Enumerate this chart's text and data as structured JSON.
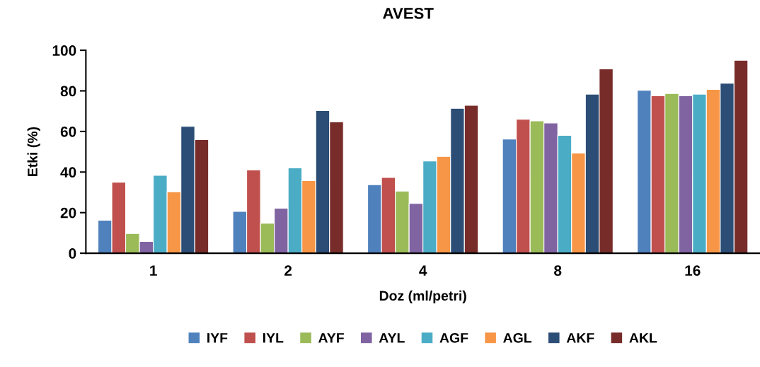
{
  "chart_data": {
    "type": "bar",
    "title": "AVEST",
    "xlabel": "Doz (ml/petri)",
    "ylabel": "Etki (%)",
    "categories": [
      "1",
      "2",
      "4",
      "8",
      "16"
    ],
    "ylim": [
      0,
      100
    ],
    "yticks": [
      0,
      20,
      40,
      60,
      80,
      100
    ],
    "grid": false,
    "legend": "bottom",
    "series": [
      {
        "name": "IYF",
        "color": "#4f81bd",
        "values": [
          16.3,
          20.6,
          33.8,
          56.2,
          80.3
        ]
      },
      {
        "name": "IYL",
        "color": "#c0504d",
        "values": [
          35,
          41.1,
          37.3,
          66,
          77.6
        ]
      },
      {
        "name": "AYF",
        "color": "#9bbb59",
        "values": [
          9.7,
          14.8,
          30.6,
          65.2,
          78.7
        ]
      },
      {
        "name": "AYL",
        "color": "#8064a2",
        "values": [
          5.8,
          22.2,
          24.5,
          64.2,
          77.6
        ]
      },
      {
        "name": "AGF",
        "color": "#4bacc6",
        "values": [
          38.4,
          42,
          45.4,
          58.1,
          78.4
        ]
      },
      {
        "name": "AGL",
        "color": "#f79646",
        "values": [
          30.3,
          35.8,
          47.7,
          49.4,
          80.7
        ]
      },
      {
        "name": "AKF",
        "color": "#2c4d75",
        "values": [
          62.5,
          70.3,
          71.4,
          78.4,
          83.8
        ]
      },
      {
        "name": "AKL",
        "color": "#772c2a",
        "values": [
          56,
          64.8,
          72.9,
          90.8,
          95.1
        ]
      }
    ]
  }
}
